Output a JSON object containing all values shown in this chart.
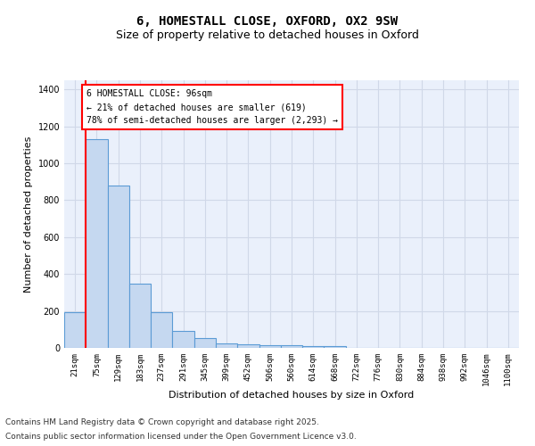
{
  "title_line1": "6, HOMESTALL CLOSE, OXFORD, OX2 9SW",
  "title_line2": "Size of property relative to detached houses in Oxford",
  "categories": [
    "21sqm",
    "75sqm",
    "129sqm",
    "183sqm",
    "237sqm",
    "291sqm",
    "345sqm",
    "399sqm",
    "452sqm",
    "506sqm",
    "560sqm",
    "614sqm",
    "668sqm",
    "722sqm",
    "776sqm",
    "830sqm",
    "884sqm",
    "938sqm",
    "992sqm",
    "1046sqm",
    "1100sqm"
  ],
  "values": [
    195,
    1130,
    880,
    350,
    195,
    90,
    55,
    25,
    20,
    15,
    15,
    10,
    10,
    0,
    0,
    0,
    0,
    0,
    0,
    0,
    0
  ],
  "bar_color": "#c5d8f0",
  "bar_edge_color": "#5b9bd5",
  "bar_edge_width": 0.8,
  "vline_color": "red",
  "vline_linewidth": 1.5,
  "vline_pos": 0.5,
  "ylabel": "Number of detached properties",
  "xlabel": "Distribution of detached houses by size in Oxford",
  "ylim": [
    0,
    1450
  ],
  "yticks": [
    0,
    200,
    400,
    600,
    800,
    1000,
    1200,
    1400
  ],
  "annotation_text": "6 HOMESTALL CLOSE: 96sqm\n← 21% of detached houses are smaller (619)\n78% of semi-detached houses are larger (2,293) →",
  "grid_color": "#d0d8e8",
  "background_color": "#eaf0fb",
  "footer_line1": "Contains HM Land Registry data © Crown copyright and database right 2025.",
  "footer_line2": "Contains public sector information licensed under the Open Government Licence v3.0.",
  "title_fontsize": 10,
  "subtitle_fontsize": 9,
  "tick_fontsize": 6.5,
  "ylabel_fontsize": 8,
  "xlabel_fontsize": 8,
  "annotation_fontsize": 7,
  "footer_fontsize": 6.5
}
